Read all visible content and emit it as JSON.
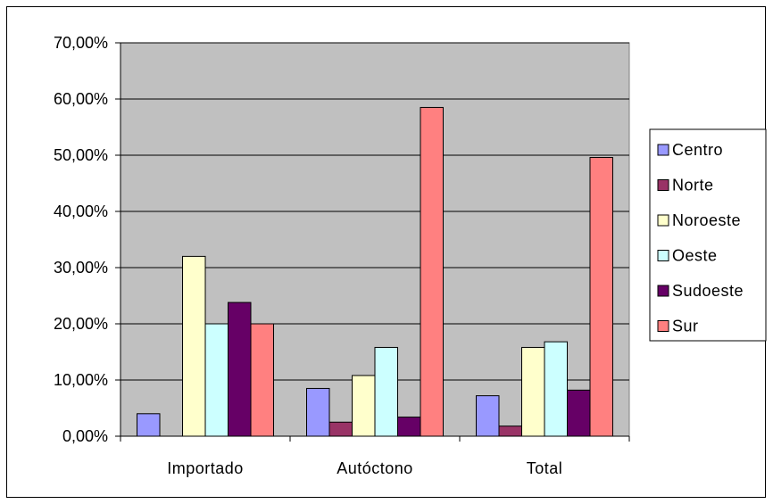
{
  "chart_data": {
    "type": "bar",
    "categories": [
      "Importado",
      "Autóctono",
      "Total"
    ],
    "series": [
      {
        "name": "Centro",
        "values": [
          4.0,
          8.5,
          7.2
        ],
        "color": "#9999ff"
      },
      {
        "name": "Norte",
        "values": [
          0.0,
          2.5,
          1.8
        ],
        "color": "#993366"
      },
      {
        "name": "Noroeste",
        "values": [
          32.0,
          10.8,
          15.8
        ],
        "color": "#ffffcc"
      },
      {
        "name": "Oeste",
        "values": [
          20.0,
          15.8,
          16.8
        ],
        "color": "#ccffff"
      },
      {
        "name": "Sudoeste",
        "values": [
          23.8,
          3.4,
          8.2
        ],
        "color": "#660066"
      },
      {
        "name": "Sur",
        "values": [
          20.0,
          58.5,
          49.6
        ],
        "color": "#ff8080"
      }
    ],
    "yticks": [
      "0,00%",
      "10,00%",
      "20,00%",
      "30,00%",
      "40,00%",
      "50,00%",
      "60,00%",
      "70,00%"
    ],
    "ylim": [
      0,
      70
    ],
    "grid": true,
    "plot_background": "#c0c0c0",
    "legend_position": "right"
  }
}
